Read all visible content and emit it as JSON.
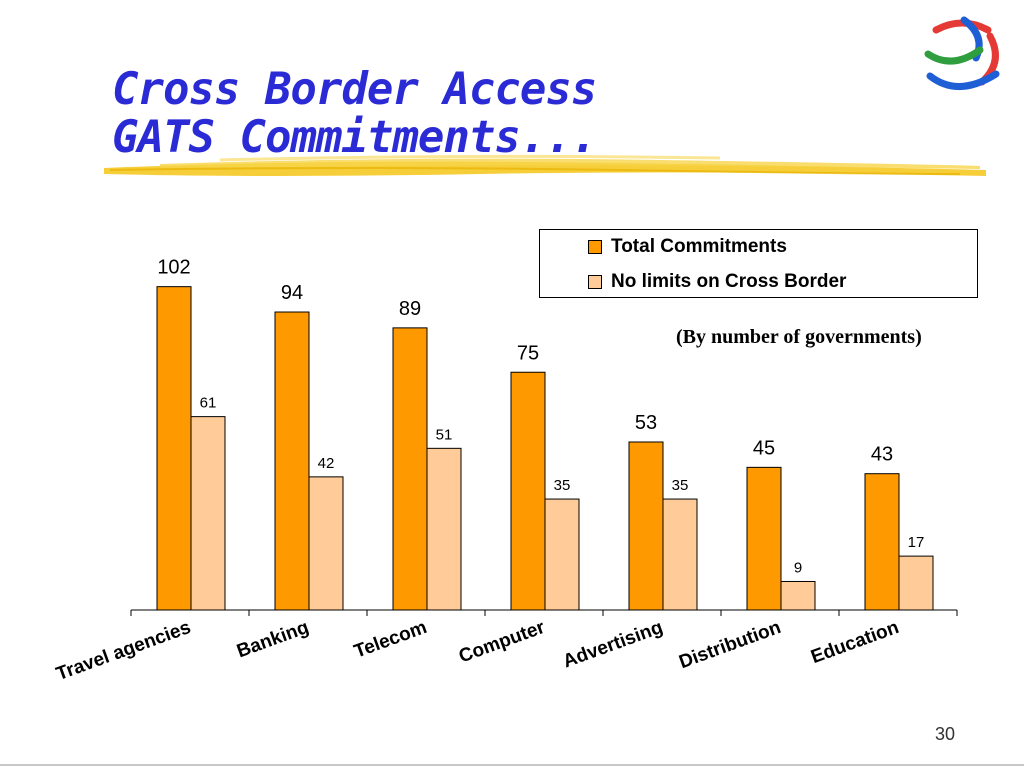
{
  "slide": {
    "title_lines": [
      "Cross Border Access",
      "GATS Commitments..."
    ],
    "page_number": "30"
  },
  "colors": {
    "title": "#2b2bd6",
    "underline": "#f5c518",
    "total_bar": "#ff9900",
    "cross_border_bar": "#ffcc99",
    "logo_stripes": [
      "#e53935",
      "#1e5fd6",
      "#2e9e3e",
      "#e53935",
      "#1e5fd6"
    ]
  },
  "logo": {
    "icon": "wto-logo-icon"
  },
  "chart_data": {
    "type": "bar",
    "title": "",
    "subtitle": "(By number of governments)",
    "categories": [
      "Travel agencies",
      "Banking",
      "Telecom",
      "Computer",
      "Advertising",
      "Distribution",
      "Education"
    ],
    "series": [
      {
        "name": "Total Commitments",
        "values": [
          102,
          94,
          89,
          75,
          53,
          45,
          43
        ]
      },
      {
        "name": "No limits on Cross Border",
        "values": [
          61,
          42,
          51,
          35,
          35,
          9,
          17
        ]
      }
    ],
    "ylim": [
      0,
      110
    ],
    "xlabel": "",
    "ylabel": "",
    "grid": false,
    "legend_position": "top-right",
    "data_labels": true
  }
}
